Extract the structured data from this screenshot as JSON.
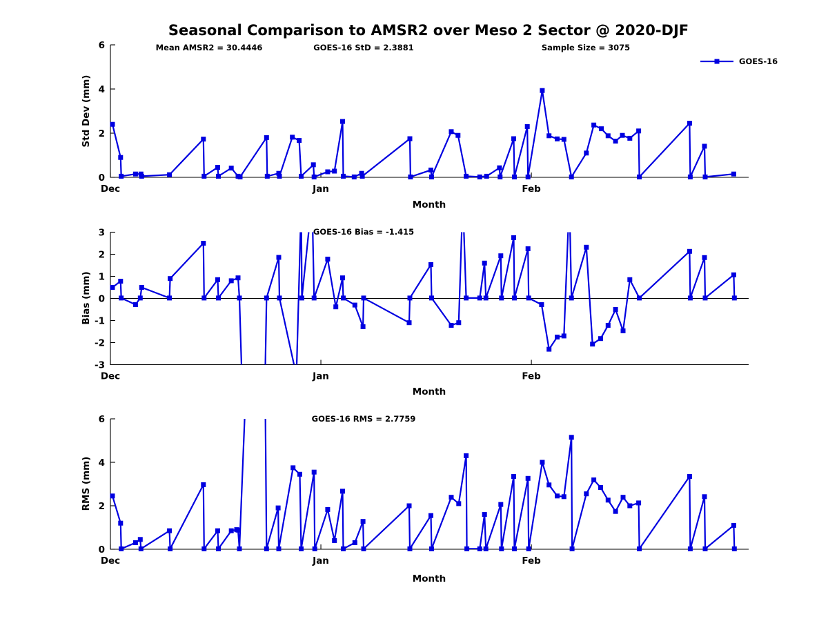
{
  "figure": {
    "title": "Seasonal Comparison to AMSR2 over Meso 2 Sector @ 2020-DJF",
    "stats": [
      {
        "label": "Mean AMSR2 = 30.4446"
      },
      {
        "label": "GOES-16 StD = 2.3881"
      },
      {
        "label": "Sample Size = 3075"
      }
    ],
    "legend": {
      "label": "GOES-16"
    },
    "line_color": "#0000e0",
    "axis_color": "#000000"
  },
  "chart_data": [
    {
      "type": "line",
      "name": "std-dev",
      "title": "",
      "ylabel": "Std Dev (mm)",
      "xlabel": "Month",
      "ylim": [
        0,
        6
      ],
      "ytick_values": [
        0,
        2,
        4,
        6
      ],
      "ytick_labels": [
        "0",
        "2",
        "4",
        "6"
      ],
      "xtick_values": [
        0,
        31,
        62
      ],
      "xtick_labels": [
        "Dec",
        "Jan",
        "Feb"
      ],
      "xlim": [
        0,
        94
      ],
      "zero_line": false,
      "series": [
        {
          "name": "GOES-16",
          "points": [
            [
              0.3,
              2.4
            ],
            [
              1.5,
              0.9
            ],
            [
              1.6,
              0.05
            ],
            [
              3.7,
              0.15
            ],
            [
              4.5,
              0.15
            ],
            [
              4.6,
              0.05
            ],
            [
              8.7,
              0.12
            ],
            [
              13.7,
              1.73
            ],
            [
              13.8,
              0.05
            ],
            [
              15.8,
              0.45
            ],
            [
              15.9,
              0.05
            ],
            [
              17.8,
              0.42
            ],
            [
              18.8,
              0.05
            ],
            [
              19.1,
              0.02
            ],
            [
              23.0,
              1.8
            ],
            [
              23.1,
              0.05
            ],
            [
              24.8,
              0.18
            ],
            [
              24.9,
              0.05
            ],
            [
              26.8,
              1.82
            ],
            [
              27.8,
              1.67
            ],
            [
              28.1,
              0.05
            ],
            [
              29.9,
              0.57
            ],
            [
              30.0,
              0.02
            ],
            [
              32.0,
              0.25
            ],
            [
              33.0,
              0.28
            ],
            [
              34.2,
              2.53
            ],
            [
              34.3,
              0.05
            ],
            [
              35.9,
              0.02
            ],
            [
              37.0,
              0.18
            ],
            [
              37.1,
              0.05
            ],
            [
              44.1,
              1.75
            ],
            [
              44.2,
              0.02
            ],
            [
              47.2,
              0.33
            ],
            [
              47.3,
              0.02
            ],
            [
              50.2,
              2.07
            ],
            [
              51.2,
              1.9
            ],
            [
              52.4,
              0.05
            ],
            [
              54.4,
              0.02
            ],
            [
              55.4,
              0.05
            ],
            [
              57.3,
              0.43
            ],
            [
              57.4,
              0.02
            ],
            [
              59.4,
              1.75
            ],
            [
              59.5,
              0.02
            ],
            [
              61.4,
              2.3
            ],
            [
              61.5,
              0.02
            ],
            [
              63.6,
              3.93
            ],
            [
              64.6,
              1.88
            ],
            [
              65.8,
              1.74
            ],
            [
              66.8,
              1.72
            ],
            [
              67.9,
              0.02
            ],
            [
              70.1,
              1.1
            ],
            [
              71.2,
              2.37
            ],
            [
              72.3,
              2.2
            ],
            [
              73.3,
              1.88
            ],
            [
              74.4,
              1.64
            ],
            [
              75.4,
              1.9
            ],
            [
              76.5,
              1.77
            ],
            [
              77.8,
              2.1
            ],
            [
              77.9,
              0.02
            ],
            [
              85.3,
              2.45
            ],
            [
              85.4,
              0.02
            ],
            [
              87.5,
              1.41
            ],
            [
              87.6,
              0.02
            ],
            [
              91.8,
              0.15
            ]
          ]
        }
      ]
    },
    {
      "type": "line",
      "name": "bias",
      "title": "GOES-16 Bias = -1.415",
      "ylabel": "Bias (mm)",
      "xlabel": "Month",
      "ylim": [
        -3,
        3
      ],
      "ytick_values": [
        -3,
        -2,
        -1,
        0,
        1,
        2,
        3
      ],
      "ytick_labels": [
        "-3",
        "-2",
        "-1",
        "0",
        "1",
        "2",
        "3"
      ],
      "xtick_values": [
        0,
        31,
        62
      ],
      "xtick_labels": [
        "Dec",
        "Jan",
        "Feb"
      ],
      "xlim": [
        0,
        94
      ],
      "zero_line": true,
      "series": [
        {
          "name": "GOES-16",
          "points": [
            [
              0.3,
              0.5
            ],
            [
              1.5,
              0.78
            ],
            [
              1.6,
              0.02
            ],
            [
              3.7,
              -0.28
            ],
            [
              4.4,
              0.02
            ],
            [
              4.6,
              0.5
            ],
            [
              8.7,
              0.02
            ],
            [
              8.8,
              0.9
            ],
            [
              13.7,
              2.5
            ],
            [
              13.8,
              0.02
            ],
            [
              15.8,
              0.85
            ],
            [
              15.9,
              0.02
            ],
            [
              17.8,
              0.8
            ],
            [
              18.8,
              0.93
            ],
            [
              19.0,
              0.02
            ],
            [
              19.5,
              -5
            ],
            [
              22.7,
              -5
            ],
            [
              23.0,
              0.02
            ],
            [
              24.8,
              1.86
            ],
            [
              24.9,
              0.02
            ],
            [
              27.4,
              -3.5
            ],
            [
              28.1,
              4.2
            ],
            [
              28.2,
              0.02
            ],
            [
              29.7,
              4.5
            ],
            [
              30.0,
              0.02
            ],
            [
              32.0,
              1.78
            ],
            [
              33.2,
              -0.38
            ],
            [
              34.2,
              0.93
            ],
            [
              34.3,
              0.02
            ],
            [
              36.0,
              -0.3
            ],
            [
              37.2,
              -1.28
            ],
            [
              37.3,
              0.02
            ],
            [
              44.0,
              -1.1
            ],
            [
              44.1,
              0.02
            ],
            [
              47.2,
              1.53
            ],
            [
              47.3,
              0.02
            ],
            [
              50.2,
              -1.22
            ],
            [
              51.3,
              -1.1
            ],
            [
              51.9,
              4.5
            ],
            [
              52.4,
              0.02
            ],
            [
              54.4,
              0.02
            ],
            [
              55.1,
              1.6
            ],
            [
              55.3,
              0.02
            ],
            [
              57.5,
              1.93
            ],
            [
              57.6,
              0.02
            ],
            [
              59.4,
              2.75
            ],
            [
              59.5,
              0.02
            ],
            [
              61.5,
              2.25
            ],
            [
              61.6,
              0.02
            ],
            [
              63.5,
              -0.28
            ],
            [
              64.6,
              -2.3
            ],
            [
              65.8,
              -1.75
            ],
            [
              66.8,
              -1.7
            ],
            [
              67.6,
              4.5
            ],
            [
              67.9,
              0.02
            ],
            [
              70.1,
              2.32
            ],
            [
              71.0,
              -2.07
            ],
            [
              72.2,
              -1.82
            ],
            [
              73.3,
              -1.22
            ],
            [
              74.4,
              -0.5
            ],
            [
              75.5,
              -1.47
            ],
            [
              76.5,
              0.85
            ],
            [
              77.9,
              0.02
            ],
            [
              85.3,
              2.13
            ],
            [
              85.4,
              0.02
            ],
            [
              87.5,
              1.85
            ],
            [
              87.6,
              0.02
            ],
            [
              91.8,
              1.07
            ],
            [
              91.9,
              0.02
            ]
          ]
        }
      ]
    },
    {
      "type": "line",
      "name": "rms",
      "title": "GOES-16 RMS = 2.7759",
      "ylabel": "RMS (mm)",
      "xlabel": "Month",
      "ylim": [
        0,
        6
      ],
      "ytick_values": [
        0,
        2,
        4,
        6
      ],
      "ytick_labels": [
        "0",
        "2",
        "4",
        "6"
      ],
      "xtick_values": [
        0,
        31,
        62
      ],
      "xtick_labels": [
        "Dec",
        "Jan",
        "Feb"
      ],
      "xlim": [
        0,
        94
      ],
      "zero_line": false,
      "series": [
        {
          "name": "GOES-16",
          "points": [
            [
              0.3,
              2.45
            ],
            [
              1.5,
              1.2
            ],
            [
              1.6,
              0.02
            ],
            [
              3.7,
              0.3
            ],
            [
              4.4,
              0.45
            ],
            [
              4.5,
              0.02
            ],
            [
              8.7,
              0.85
            ],
            [
              8.8,
              0.02
            ],
            [
              13.7,
              2.97
            ],
            [
              13.8,
              0.02
            ],
            [
              15.8,
              0.85
            ],
            [
              15.9,
              0.02
            ],
            [
              17.8,
              0.85
            ],
            [
              18.6,
              0.9
            ],
            [
              18.8,
              0.88
            ],
            [
              19.0,
              0.02
            ],
            [
              19.9,
              7
            ],
            [
              22.8,
              7
            ],
            [
              23.0,
              0.02
            ],
            [
              24.7,
              1.9
            ],
            [
              24.8,
              0.02
            ],
            [
              26.9,
              3.75
            ],
            [
              27.9,
              3.45
            ],
            [
              28.1,
              0.02
            ],
            [
              30.0,
              3.55
            ],
            [
              30.1,
              0.02
            ],
            [
              32.0,
              1.83
            ],
            [
              33.0,
              0.4
            ],
            [
              34.2,
              2.67
            ],
            [
              34.3,
              0.02
            ],
            [
              36.0,
              0.3
            ],
            [
              37.2,
              1.28
            ],
            [
              37.3,
              0.02
            ],
            [
              44.0,
              2.0
            ],
            [
              44.1,
              0.02
            ],
            [
              47.2,
              1.55
            ],
            [
              47.3,
              0.02
            ],
            [
              50.2,
              2.39
            ],
            [
              51.3,
              2.1
            ],
            [
              52.4,
              4.3
            ],
            [
              52.5,
              0.02
            ],
            [
              54.4,
              0.02
            ],
            [
              55.1,
              1.6
            ],
            [
              55.3,
              0.02
            ],
            [
              57.5,
              2.06
            ],
            [
              57.6,
              0.02
            ],
            [
              59.4,
              3.35
            ],
            [
              59.5,
              0.02
            ],
            [
              61.5,
              3.26
            ],
            [
              61.6,
              0.02
            ],
            [
              63.6,
              4.0
            ],
            [
              64.6,
              2.96
            ],
            [
              65.8,
              2.45
            ],
            [
              66.8,
              2.42
            ],
            [
              67.9,
              5.15
            ],
            [
              68.0,
              0.02
            ],
            [
              70.1,
              2.55
            ],
            [
              71.2,
              3.19
            ],
            [
              72.2,
              2.84
            ],
            [
              73.3,
              2.26
            ],
            [
              74.4,
              1.74
            ],
            [
              75.5,
              2.39
            ],
            [
              76.5,
              2.0
            ],
            [
              77.8,
              2.13
            ],
            [
              77.9,
              0.02
            ],
            [
              85.3,
              3.35
            ],
            [
              85.4,
              0.02
            ],
            [
              87.5,
              2.42
            ],
            [
              87.6,
              0.02
            ],
            [
              91.8,
              1.1
            ],
            [
              91.9,
              0.02
            ]
          ]
        }
      ]
    }
  ]
}
